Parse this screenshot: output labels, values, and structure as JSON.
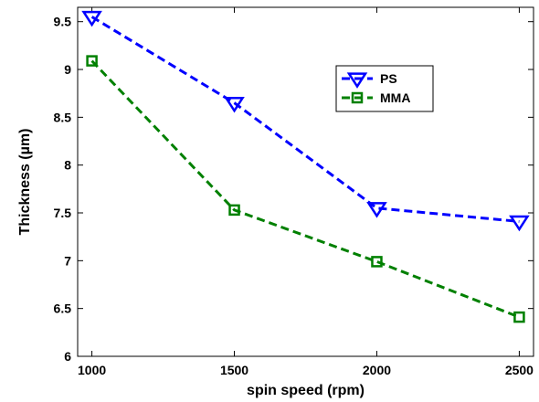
{
  "chart_data": {
    "type": "line",
    "xlabel": "spin speed (rpm)",
    "ylabel": "Thickness (µm)",
    "x": [
      1000,
      1500,
      2000,
      2500
    ],
    "xticks": [
      "1000",
      "1500",
      "2000",
      "2500"
    ],
    "yticks": [
      "6",
      "6.5",
      "7",
      "7.5",
      "8",
      "8.5",
      "9",
      "9.5"
    ],
    "xlim": [
      950,
      2550
    ],
    "ylim": [
      6,
      9.65
    ],
    "grid": false,
    "legend_position": "top-right",
    "series": [
      {
        "name": "PS",
        "values": [
          9.55,
          8.65,
          7.55,
          7.41
        ],
        "color": "#0000ff",
        "marker": "triangle-down",
        "line": "dashed"
      },
      {
        "name": "MMA",
        "values": [
          9.09,
          7.53,
          6.99,
          6.41
        ],
        "color": "#008000",
        "marker": "square",
        "line": "dashed"
      }
    ]
  }
}
